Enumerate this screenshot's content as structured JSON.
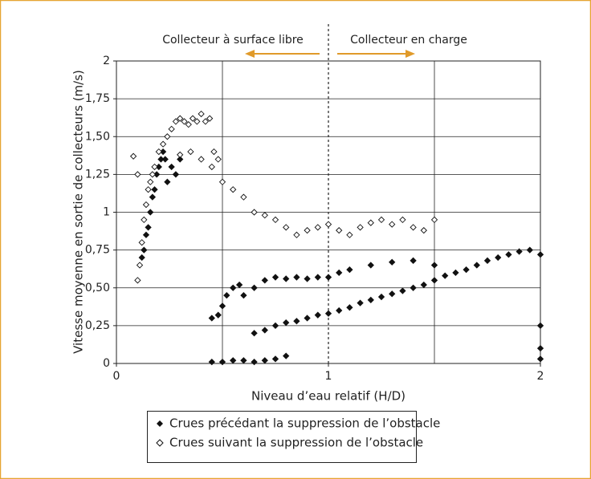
{
  "chart_data": {
    "type": "scatter",
    "xlabel": "Niveau d’eau relatif (H/D)",
    "ylabel": "Vitesse moyenne en sortie de collecteurs (m/s)",
    "annotations": [
      "Collecteur à surface libre",
      "Collecteur en charge"
    ],
    "divider_x": 1,
    "xlim": [
      0,
      2
    ],
    "ylim": [
      0,
      2
    ],
    "xticks": [
      0,
      1,
      2
    ],
    "xgrid": [
      0.5,
      1.5,
      2
    ],
    "yticks": [
      0,
      {
        "value": 0.25,
        "label": "0,25"
      },
      {
        "value": 0.5,
        "label": "0,50"
      },
      {
        "value": 0.75,
        "label": "0,75"
      },
      1,
      {
        "value": 1.25,
        "label": "1,25"
      },
      {
        "value": 1.5,
        "label": "1,50"
      },
      {
        "value": 1.75,
        "label": "1,75"
      },
      2
    ],
    "grid": true,
    "series": [
      {
        "name": "Crues précédant la suppression de l’obstacle",
        "color": "#111111",
        "marker": "filled",
        "x": [
          0.12,
          0.13,
          0.14,
          0.15,
          0.16,
          0.17,
          0.18,
          0.19,
          0.2,
          0.21,
          0.22,
          0.23,
          0.24,
          0.26,
          0.28,
          0.3,
          0.45,
          0.48,
          0.5,
          0.52,
          0.55,
          0.58,
          0.6,
          0.65,
          0.7,
          0.75,
          0.8,
          0.85,
          0.9,
          0.95,
          1.0,
          1.05,
          1.1,
          0.45,
          0.5,
          0.55,
          0.6,
          0.65,
          0.7,
          0.75,
          0.8,
          0.65,
          0.7,
          0.75,
          0.8,
          0.85,
          0.9,
          0.95,
          1.0,
          1.05,
          1.1,
          1.15,
          1.2,
          1.25,
          1.3,
          1.35,
          1.4,
          1.45,
          1.5,
          1.55,
          1.6,
          1.65,
          1.7,
          1.75,
          1.8,
          1.85,
          1.9,
          1.95,
          2.0,
          1.2,
          1.3,
          1.4,
          1.5,
          2.0,
          2.0,
          2.0
        ],
        "values": [
          0.7,
          0.75,
          0.85,
          0.9,
          1.0,
          1.1,
          1.15,
          1.25,
          1.3,
          1.35,
          1.4,
          1.35,
          1.2,
          1.3,
          1.25,
          1.35,
          0.3,
          0.32,
          0.38,
          0.45,
          0.5,
          0.52,
          0.45,
          0.5,
          0.55,
          0.57,
          0.56,
          0.57,
          0.56,
          0.57,
          0.57,
          0.6,
          0.62,
          0.01,
          0.01,
          0.02,
          0.02,
          0.01,
          0.02,
          0.03,
          0.05,
          0.2,
          0.22,
          0.25,
          0.27,
          0.28,
          0.3,
          0.32,
          0.33,
          0.35,
          0.37,
          0.4,
          0.42,
          0.44,
          0.46,
          0.48,
          0.5,
          0.52,
          0.55,
          0.58,
          0.6,
          0.62,
          0.65,
          0.68,
          0.7,
          0.72,
          0.74,
          0.75,
          0.72,
          0.65,
          0.67,
          0.68,
          0.65,
          0.25,
          0.1,
          0.03
        ]
      },
      {
        "name": "Crues suivant la suppression de l’obstacle",
        "color": "#111111",
        "marker": "open",
        "x": [
          0.1,
          0.11,
          0.12,
          0.13,
          0.14,
          0.15,
          0.16,
          0.17,
          0.18,
          0.2,
          0.22,
          0.24,
          0.26,
          0.28,
          0.3,
          0.32,
          0.34,
          0.36,
          0.38,
          0.4,
          0.42,
          0.44,
          0.46,
          0.48,
          0.5,
          0.55,
          0.6,
          0.65,
          0.7,
          0.75,
          0.8,
          0.85,
          0.9,
          0.95,
          1.0,
          1.05,
          1.1,
          1.15,
          1.2,
          1.25,
          1.3,
          1.35,
          1.4,
          1.45,
          1.5,
          0.08,
          0.1,
          0.3,
          0.35,
          0.4,
          0.45
        ],
        "values": [
          0.55,
          0.65,
          0.8,
          0.95,
          1.05,
          1.15,
          1.2,
          1.25,
          1.3,
          1.4,
          1.45,
          1.5,
          1.55,
          1.6,
          1.62,
          1.6,
          1.58,
          1.62,
          1.6,
          1.65,
          1.6,
          1.62,
          1.4,
          1.35,
          1.2,
          1.15,
          1.1,
          1.0,
          0.98,
          0.95,
          0.9,
          0.85,
          0.88,
          0.9,
          0.92,
          0.88,
          0.85,
          0.9,
          0.93,
          0.95,
          0.92,
          0.95,
          0.9,
          0.88,
          0.95,
          1.37,
          1.25,
          1.38,
          1.4,
          1.35,
          1.3
        ]
      }
    ]
  }
}
